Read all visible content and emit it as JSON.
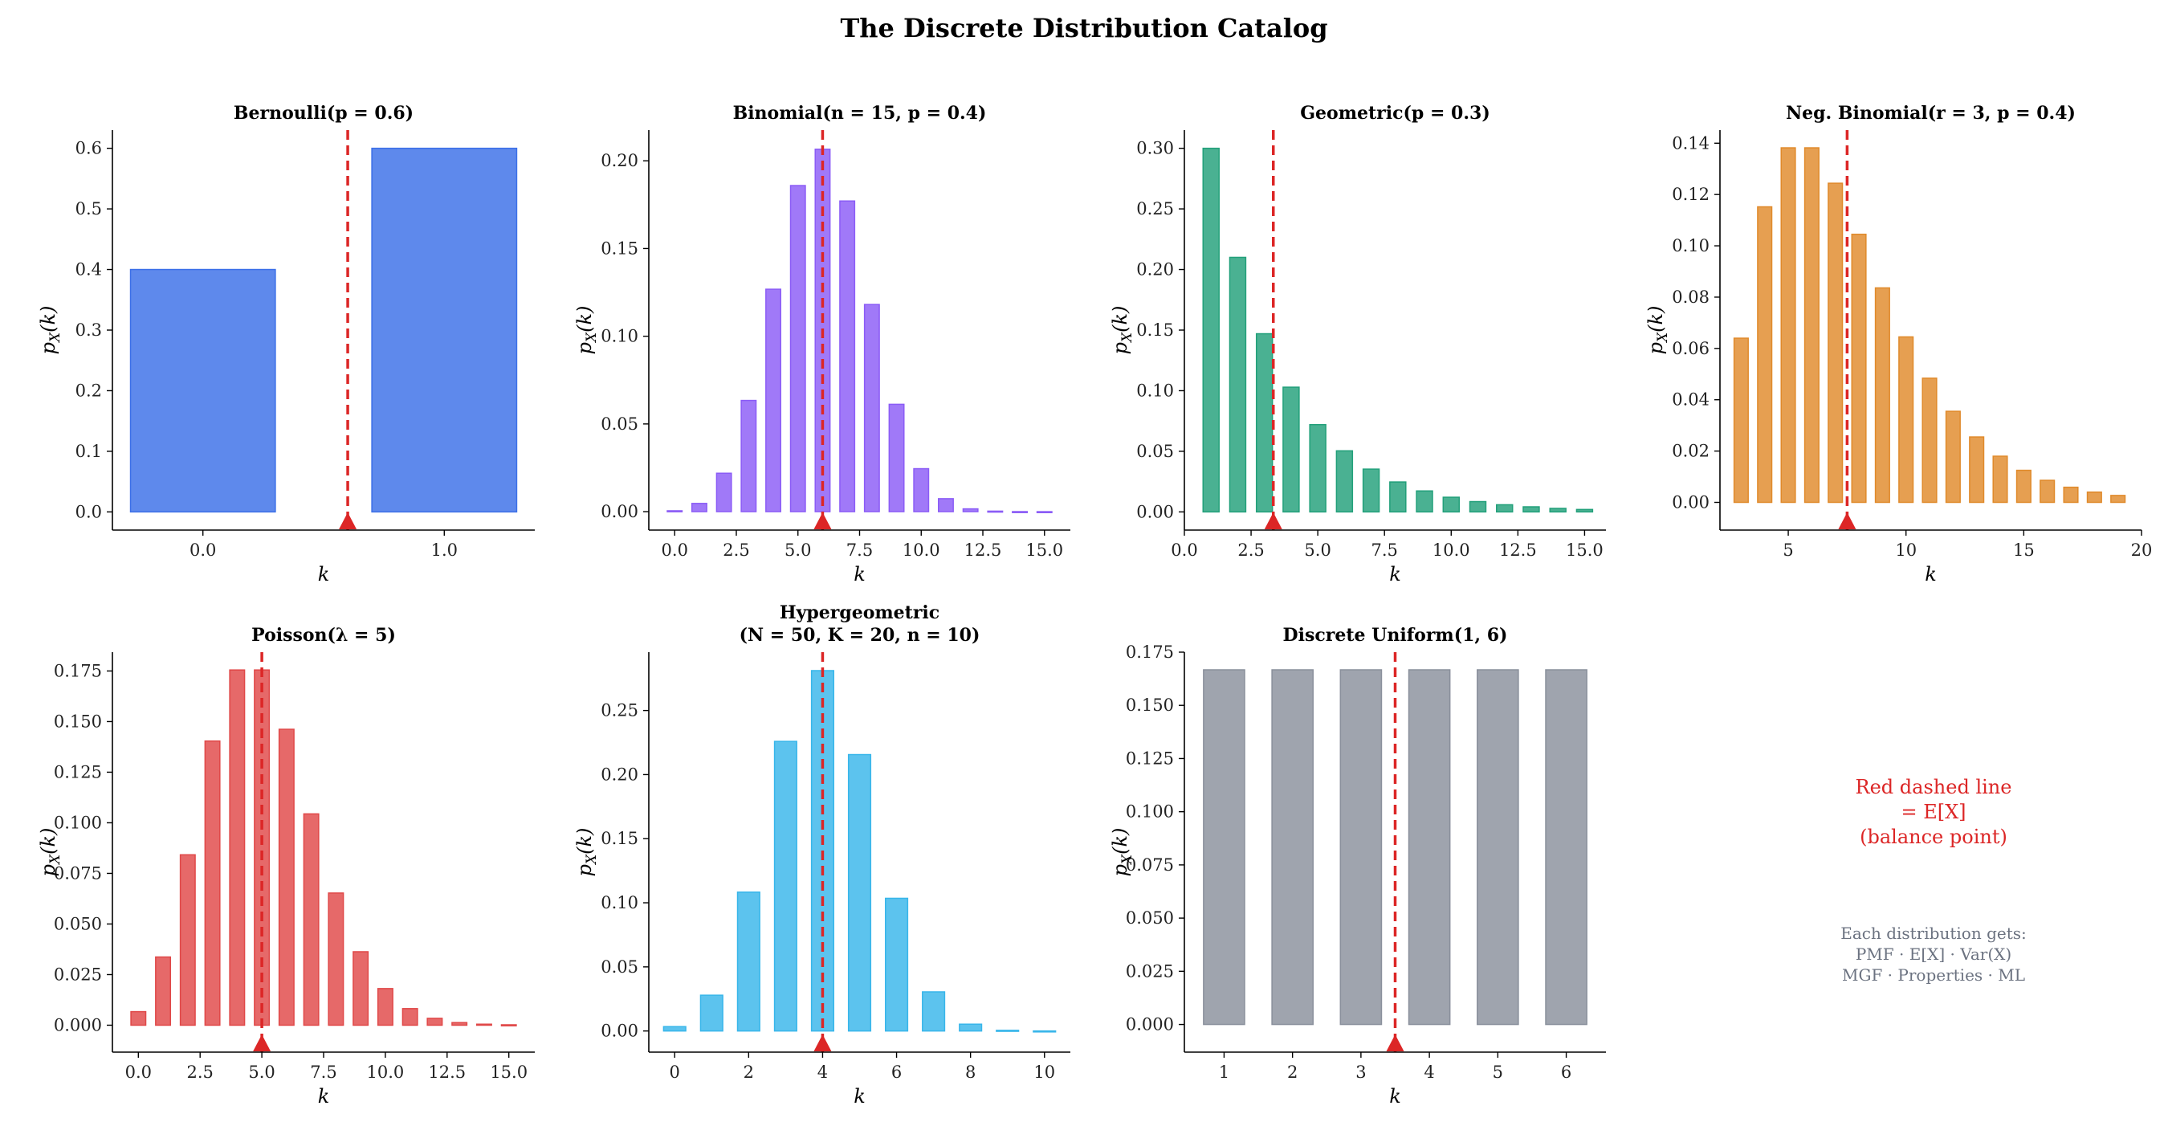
{
  "suptitle": "The Discrete Distribution Catalog",
  "mean_line_color": "#dc2626",
  "notes": {
    "red": [
      "Red dashed line",
      "= E[X]",
      "(balance point)"
    ],
    "gray": [
      "Each distribution gets:",
      "PMF  ·  E[X]  ·  Var(X)",
      "MGF  ·  Properties  ·  ML"
    ]
  },
  "chart_data": [
    {
      "type": "bar",
      "title": [
        "Bernoulli(p = 0.6)"
      ],
      "color": "#3b6fe8",
      "x": [
        0,
        1
      ],
      "values": [
        0.4,
        0.6
      ],
      "bar_width": 0.6,
      "mean": 0.6,
      "xlim": [
        -0.375,
        1.375
      ],
      "ylim": [
        -0.03,
        0.63
      ],
      "xticks": [
        0,
        1
      ],
      "xticklabels": [
        "0.0",
        "1.0"
      ],
      "yticks": [
        0,
        0.1,
        0.2,
        0.3,
        0.4,
        0.5,
        0.6
      ],
      "yticklabels": [
        "0.0",
        "0.1",
        "0.2",
        "0.3",
        "0.4",
        "0.5",
        "0.6"
      ],
      "xlabel": "k",
      "ylabel": "p_X(k)"
    },
    {
      "type": "bar",
      "title": [
        "Binomial(n = 15, p = 0.4)"
      ],
      "color": "#8b5cf6",
      "x": [
        0,
        1,
        2,
        3,
        4,
        5,
        6,
        7,
        8,
        9,
        10,
        11,
        12,
        13,
        14,
        15
      ],
      "values": [
        0.0005,
        0.0047,
        0.0219,
        0.0634,
        0.1268,
        0.1859,
        0.2066,
        0.1771,
        0.1181,
        0.0612,
        0.0245,
        0.0074,
        0.0016,
        0.0003,
        3e-05,
        1e-06
      ],
      "bar_width": 0.6,
      "mean": 6,
      "xlim": [
        -1.05,
        16.05
      ],
      "ylim": [
        -0.0105,
        0.2175
      ],
      "xticks": [
        0,
        2.5,
        5,
        7.5,
        10,
        12.5,
        15
      ],
      "xticklabels": [
        "0.0",
        "2.5",
        "5.0",
        "7.5",
        "10.0",
        "12.5",
        "15.0"
      ],
      "yticks": [
        0,
        0.05,
        0.1,
        0.15,
        0.2
      ],
      "yticklabels": [
        "0.00",
        "0.05",
        "0.10",
        "0.15",
        "0.20"
      ],
      "xlabel": "k",
      "ylabel": "p_X(k)"
    },
    {
      "type": "bar",
      "title": [
        "Geometric(p = 0.3)"
      ],
      "color": "#22a07a",
      "x": [
        1,
        2,
        3,
        4,
        5,
        6,
        7,
        8,
        9,
        10,
        11,
        12,
        13,
        14,
        15
      ],
      "values": [
        0.3,
        0.21,
        0.147,
        0.1029,
        0.072,
        0.0504,
        0.0353,
        0.0247,
        0.0173,
        0.0121,
        0.0085,
        0.0059,
        0.0042,
        0.0029,
        0.002
      ],
      "bar_width": 0.6,
      "mean": 3.333,
      "xlim": [
        0,
        15.8
      ],
      "ylim": [
        -0.015,
        0.315
      ],
      "xticks": [
        0,
        2.5,
        5,
        7.5,
        10,
        12.5,
        15
      ],
      "xticklabels": [
        "0.0",
        "2.5",
        "5.0",
        "7.5",
        "10.0",
        "12.5",
        "15.0"
      ],
      "yticks": [
        0,
        0.05,
        0.1,
        0.15,
        0.2,
        0.25,
        0.3
      ],
      "yticklabels": [
        "0.00",
        "0.05",
        "0.10",
        "0.15",
        "0.20",
        "0.25",
        "0.30"
      ],
      "xlabel": "k",
      "ylabel": "p_X(k)"
    },
    {
      "type": "bar",
      "title": [
        "Neg. Binomial(r = 3, p = 0.4)"
      ],
      "color": "#e08a2b",
      "x": [
        3,
        4,
        5,
        6,
        7,
        8,
        9,
        10,
        11,
        12,
        13,
        14,
        15,
        16,
        17,
        18,
        19
      ],
      "values": [
        0.064,
        0.1152,
        0.1382,
        0.1382,
        0.1244,
        0.1045,
        0.0836,
        0.0645,
        0.0484,
        0.0355,
        0.0255,
        0.018,
        0.0125,
        0.0086,
        0.0059,
        0.004,
        0.0027
      ],
      "bar_width": 0.6,
      "mean": 7.5,
      "xlim": [
        2.1,
        20
      ],
      "ylim": [
        -0.0108,
        0.1451
      ],
      "xticks": [
        5,
        10,
        15,
        20
      ],
      "xticklabels": [
        "5",
        "10",
        "15",
        "20"
      ],
      "yticks": [
        0,
        0.02,
        0.04,
        0.06,
        0.08,
        0.1,
        0.12,
        0.14
      ],
      "yticklabels": [
        "0.00",
        "0.02",
        "0.04",
        "0.06",
        "0.08",
        "0.10",
        "0.12",
        "0.14"
      ],
      "xlabel": "k",
      "ylabel": "p_X(k)"
    },
    {
      "type": "bar",
      "title": [
        "Poisson(λ = 5)"
      ],
      "color": "#e04848",
      "x": [
        0,
        1,
        2,
        3,
        4,
        5,
        6,
        7,
        8,
        9,
        10,
        11,
        12,
        13,
        14,
        15
      ],
      "values": [
        0.0067,
        0.0337,
        0.0842,
        0.1404,
        0.1755,
        0.1755,
        0.1462,
        0.1044,
        0.0653,
        0.0363,
        0.0181,
        0.0082,
        0.0034,
        0.0013,
        0.0005,
        0.0002
      ],
      "bar_width": 0.6,
      "mean": 5,
      "xlim": [
        -1.05,
        16.05
      ],
      "ylim": [
        -0.0133,
        0.1843
      ],
      "xticks": [
        0,
        2.5,
        5,
        7.5,
        10,
        12.5,
        15
      ],
      "xticklabels": [
        "0.0",
        "2.5",
        "5.0",
        "7.5",
        "10.0",
        "12.5",
        "15.0"
      ],
      "yticks": [
        0,
        0.025,
        0.05,
        0.075,
        0.1,
        0.125,
        0.15,
        0.175
      ],
      "yticklabels": [
        "0.000",
        "0.025",
        "0.050",
        "0.075",
        "0.100",
        "0.125",
        "0.150",
        "0.175"
      ],
      "xlabel": "k",
      "ylabel": "p_X(k)"
    },
    {
      "type": "bar",
      "title": [
        "Hypergeometric",
        "(N = 50, K = 20, n = 10)"
      ],
      "color": "#38b6ea",
      "x": [
        0,
        1,
        2,
        3,
        4,
        5,
        6,
        7,
        8,
        9,
        10
      ],
      "values": [
        0.0034,
        0.0279,
        0.1083,
        0.2259,
        0.2811,
        0.2156,
        0.1035,
        0.0305,
        0.0053,
        0.0005,
        2e-05
      ],
      "bar_width": 0.6,
      "mean": 4,
      "xlim": [
        -0.7,
        10.7
      ],
      "ylim": [
        -0.0165,
        0.2955
      ],
      "xticks": [
        0,
        2,
        4,
        6,
        8,
        10
      ],
      "xticklabels": [
        "0",
        "2",
        "4",
        "6",
        "8",
        "10"
      ],
      "yticks": [
        0,
        0.05,
        0.1,
        0.15,
        0.2,
        0.25
      ],
      "yticklabels": [
        "0.00",
        "0.05",
        "0.10",
        "0.15",
        "0.20",
        "0.25"
      ],
      "xlabel": "k",
      "ylabel": "p_X(k)"
    },
    {
      "type": "bar",
      "title": [
        "Discrete Uniform(1, 6)"
      ],
      "color": "#8a909c",
      "x": [
        1,
        2,
        3,
        4,
        5,
        6
      ],
      "values": [
        0.1667,
        0.1667,
        0.1667,
        0.1667,
        0.1667,
        0.1667
      ],
      "bar_width": 0.6,
      "mean": 3.5,
      "xlim": [
        0.42,
        6.58
      ],
      "ylim": [
        -0.013,
        0.175
      ],
      "xticks": [
        1,
        2,
        3,
        4,
        5,
        6
      ],
      "xticklabels": [
        "1",
        "2",
        "3",
        "4",
        "5",
        "6"
      ],
      "yticks": [
        0,
        0.025,
        0.05,
        0.075,
        0.1,
        0.125,
        0.15,
        0.175
      ],
      "yticklabels": [
        "0.000",
        "0.025",
        "0.050",
        "0.075",
        "0.100",
        "0.125",
        "0.150",
        "0.175"
      ],
      "xlabel": "k",
      "ylabel": "p_X(k)"
    }
  ]
}
